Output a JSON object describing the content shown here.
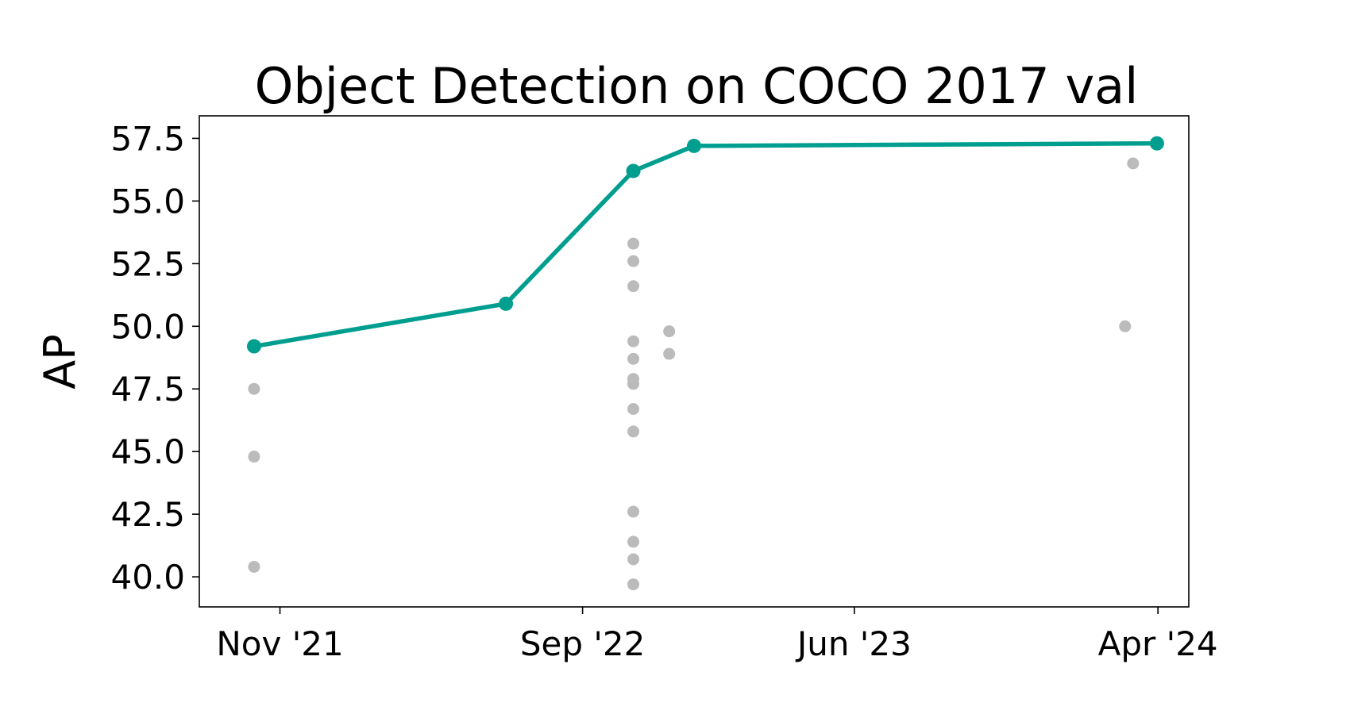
{
  "chart_data": {
    "type": "scatter",
    "title": "Object Detection on COCO 2017 val",
    "xlabel": "",
    "ylabel": "AP",
    "x_axis": {
      "type": "date",
      "ticks": [
        {
          "date": "2021-11-01",
          "label": "Nov '21"
        },
        {
          "date": "2022-09-01",
          "label": "Sep '22"
        },
        {
          "date": "2023-06-01",
          "label": "Jun '23"
        },
        {
          "date": "2024-04-01",
          "label": "Apr '24"
        }
      ],
      "xlim": [
        "2021-08-12",
        "2024-05-02"
      ]
    },
    "y_axis": {
      "ticks": [
        40.0,
        42.5,
        45.0,
        47.5,
        50.0,
        52.5,
        55.0,
        57.5
      ],
      "ylim": [
        38.8,
        58.4
      ]
    },
    "grid": false,
    "series": [
      {
        "kind": "line",
        "color": "#009E8F",
        "points": [
          {
            "x": "2021-10-06",
            "y": 49.2
          },
          {
            "x": "2022-06-16",
            "y": 50.9
          },
          {
            "x": "2022-10-22",
            "y": 56.2
          },
          {
            "x": "2022-12-22",
            "y": 57.2
          },
          {
            "x": "2024-03-31",
            "y": 57.3
          }
        ]
      },
      {
        "kind": "scatter",
        "color": "#BBBBBB",
        "points": [
          {
            "x": "2021-10-06",
            "y": 47.5
          },
          {
            "x": "2021-10-06",
            "y": 44.8
          },
          {
            "x": "2021-10-06",
            "y": 40.4
          },
          {
            "x": "2022-10-22",
            "y": 53.3
          },
          {
            "x": "2022-10-22",
            "y": 52.6
          },
          {
            "x": "2022-10-22",
            "y": 51.6
          },
          {
            "x": "2022-10-22",
            "y": 49.4
          },
          {
            "x": "2022-10-22",
            "y": 48.7
          },
          {
            "x": "2022-10-22",
            "y": 47.9
          },
          {
            "x": "2022-10-22",
            "y": 47.7
          },
          {
            "x": "2022-10-22",
            "y": 46.7
          },
          {
            "x": "2022-10-22",
            "y": 45.8
          },
          {
            "x": "2022-10-22",
            "y": 42.6
          },
          {
            "x": "2022-10-22",
            "y": 41.4
          },
          {
            "x": "2022-10-22",
            "y": 40.7
          },
          {
            "x": "2022-10-22",
            "y": 39.7
          },
          {
            "x": "2022-11-27",
            "y": 49.8
          },
          {
            "x": "2022-11-27",
            "y": 48.9
          },
          {
            "x": "2024-03-07",
            "y": 56.5
          },
          {
            "x": "2024-02-28",
            "y": 50.0
          }
        ]
      }
    ]
  }
}
